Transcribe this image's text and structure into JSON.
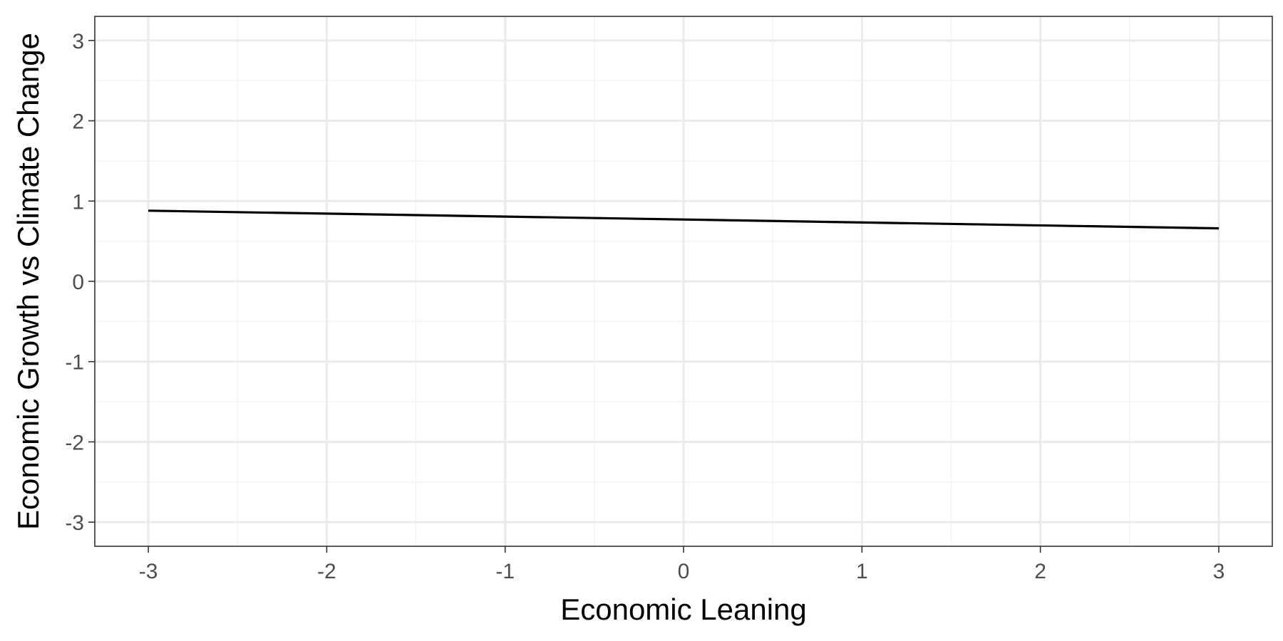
{
  "chart_data": {
    "type": "line",
    "title": "",
    "xlabel": "Economic Leaning",
    "ylabel": "Economic Growth vs Climate Change",
    "xlim": [
      -3.3,
      3.3
    ],
    "ylim": [
      -3.3,
      3.3
    ],
    "x_ticks": [
      -3,
      -2,
      -1,
      0,
      1,
      2,
      3
    ],
    "x_tick_labels": [
      "-3",
      "-2",
      "-1",
      "0",
      "1",
      "2",
      "3"
    ],
    "y_ticks": [
      -3,
      -2,
      -1,
      0,
      1,
      2,
      3
    ],
    "y_tick_labels": [
      "-3",
      "-2",
      "-1",
      "0",
      "1",
      "2",
      "3"
    ],
    "grid": true,
    "legend": "none",
    "series": [
      {
        "x": [
          -3,
          3
        ],
        "y": [
          0.88,
          0.66
        ],
        "color": "#000000"
      }
    ]
  }
}
